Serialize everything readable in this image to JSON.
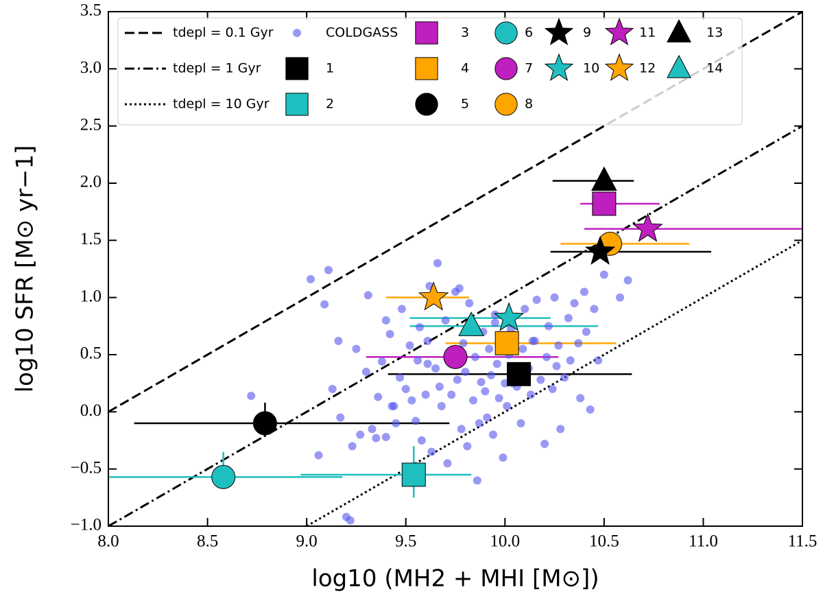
{
  "chart_data": {
    "type": "scatter",
    "xlabel": "log10 (MH2 + MHI [M⊙])",
    "ylabel": "log10 SFR [M⊙ yr−1]",
    "xlim": [
      8.0,
      11.5
    ],
    "ylim": [
      -1.0,
      3.5
    ],
    "xticks": [
      {
        "value": 8,
        "label": "8.0"
      },
      {
        "value": 8.5,
        "label": "8.5"
      },
      {
        "value": 9,
        "label": "9.0"
      },
      {
        "value": 9.5,
        "label": "9.5"
      },
      {
        "value": 10,
        "label": "10.0"
      },
      {
        "value": 10.5,
        "label": "10.5"
      },
      {
        "value": 11,
        "label": "11.0"
      },
      {
        "value": 11.5,
        "label": "11.5"
      }
    ],
    "yticks": [
      {
        "value": -1,
        "label": "−1.0"
      },
      {
        "value": -0.5,
        "label": "−0.5"
      },
      {
        "value": 0,
        "label": "0.0"
      },
      {
        "value": 0.5,
        "label": "0.5"
      },
      {
        "value": 1,
        "label": "1.0"
      },
      {
        "value": 1.5,
        "label": "1.5"
      },
      {
        "value": 2,
        "label": "2.0"
      },
      {
        "value": 2.5,
        "label": "2.5"
      },
      {
        "value": 3,
        "label": "3.0"
      },
      {
        "value": 3.5,
        "label": "3.5"
      }
    ],
    "legend": "upper left",
    "lines": [
      {
        "name": "tdepl = 0.1 Gyr",
        "style": "dashed",
        "color": "#000000",
        "x": [
          8.0,
          11.5
        ],
        "y": [
          0.0,
          3.5
        ]
      },
      {
        "name": "tdepl = 1 Gyr",
        "style": "dashdot",
        "color": "#000000",
        "x": [
          8.0,
          11.5
        ],
        "y": [
          -1.0,
          2.5
        ]
      },
      {
        "name": "tdepl = 10 Gyr",
        "style": "dotted",
        "color": "#000000",
        "x": [
          9.0,
          11.5
        ],
        "y": [
          -1.0,
          1.5
        ]
      }
    ],
    "series": [
      {
        "name": "COLDGASS",
        "color": "#5555ee",
        "marker": "dot",
        "x": [
          8.72,
          9.02,
          9.06,
          9.09,
          9.11,
          9.13,
          9.16,
          9.2,
          9.22,
          9.17,
          9.25,
          9.27,
          9.3,
          9.31,
          9.33,
          9.35,
          9.36,
          9.38,
          9.4,
          9.4,
          9.42,
          9.43,
          9.45,
          9.47,
          9.48,
          9.5,
          9.5,
          9.52,
          9.53,
          9.55,
          9.56,
          9.57,
          9.58,
          9.6,
          9.61,
          9.62,
          9.63,
          9.65,
          9.66,
          9.67,
          9.68,
          9.7,
          9.71,
          9.72,
          9.73,
          9.75,
          9.76,
          9.78,
          9.79,
          9.8,
          9.81,
          9.82,
          9.84,
          9.85,
          9.86,
          9.88,
          9.89,
          9.9,
          9.91,
          9.92,
          9.93,
          9.94,
          9.95,
          9.96,
          9.97,
          9.98,
          9.99,
          10.0,
          10.01,
          10.02,
          10.03,
          10.05,
          10.06,
          10.08,
          10.09,
          10.1,
          10.12,
          10.13,
          10.15,
          10.16,
          10.18,
          10.2,
          10.21,
          10.22,
          10.24,
          10.25,
          10.27,
          10.28,
          10.3,
          10.32,
          10.33,
          10.35,
          10.37,
          10.38,
          10.4,
          10.41,
          10.43,
          10.45,
          10.47,
          10.5,
          10.55,
          10.58,
          10.62,
          9.23,
          9.44,
          9.61,
          9.77,
          9.87,
          9.95,
          10.04,
          10.14,
          10.26
        ],
        "y": [
          0.14,
          1.16,
          -0.38,
          0.94,
          1.24,
          0.2,
          0.62,
          -0.92,
          -0.95,
          -0.05,
          0.55,
          -0.2,
          0.35,
          1.02,
          -0.15,
          -0.23,
          0.13,
          0.44,
          0.8,
          -0.22,
          0.68,
          0.05,
          -0.1,
          0.3,
          0.9,
          0.2,
          -0.5,
          0.58,
          0.1,
          -0.08,
          0.45,
          0.74,
          -0.25,
          0.15,
          0.62,
          1.1,
          -0.35,
          0.38,
          1.3,
          0.22,
          0.05,
          0.8,
          -0.45,
          0.5,
          0.15,
          1.05,
          0.28,
          -0.15,
          0.6,
          0.35,
          -0.3,
          0.95,
          0.1,
          0.48,
          -0.6,
          0.26,
          0.7,
          0.18,
          -0.05,
          0.55,
          0.32,
          -0.2,
          0.85,
          0.42,
          0.12,
          0.62,
          -0.4,
          0.25,
          0.05,
          0.5,
          0.72,
          0.3,
          0.22,
          -0.1,
          0.55,
          0.9,
          0.38,
          0.15,
          0.62,
          0.98,
          0.28,
          -0.28,
          0.48,
          0.75,
          0.2,
          1.0,
          0.58,
          -0.15,
          0.3,
          0.82,
          0.45,
          0.95,
          0.6,
          0.12,
          1.05,
          0.7,
          0.02,
          0.9,
          0.45,
          1.2,
          1.45,
          1.0,
          1.15,
          -0.3,
          0.05,
          0.42,
          1.08,
          -0.1,
          0.78,
          0.25,
          0.62,
          0.4
        ]
      },
      {
        "name": "1",
        "color": "#000000",
        "marker": "square",
        "x": [
          10.07
        ],
        "y": [
          0.33
        ],
        "xerr": [
          0.66,
          0.57
        ]
      },
      {
        "name": "2",
        "color": "#1fbfbf",
        "marker": "square",
        "x": [
          9.54
        ],
        "y": [
          -0.55
        ],
        "xerr": [
          0.57,
          0.29
        ],
        "yerr": [
          0.2,
          0.25
        ]
      },
      {
        "name": "3",
        "color": "#bf1fbf",
        "marker": "square",
        "x": [
          10.5
        ],
        "y": [
          1.82
        ],
        "xerr": [
          0.12,
          0.28
        ]
      },
      {
        "name": "4",
        "color": "#ffa500",
        "marker": "square",
        "x": [
          10.01
        ],
        "y": [
          0.6
        ],
        "xerr": [
          0.31,
          0.55
        ]
      },
      {
        "name": "5",
        "color": "#000000",
        "marker": "circle",
        "x": [
          8.79
        ],
        "y": [
          -0.1
        ],
        "xerr": [
          0.66,
          0.93
        ],
        "yerr": [
          0,
          0.18
        ]
      },
      {
        "name": "6",
        "color": "#1fbfbf",
        "marker": "circle",
        "x": [
          8.58
        ],
        "y": [
          -0.57
        ],
        "xerr": [
          0.62,
          0.6
        ],
        "yerr": [
          0,
          0.22
        ]
      },
      {
        "name": "7",
        "color": "#bf1fbf",
        "marker": "circle",
        "x": [
          9.75
        ],
        "y": [
          0.48
        ],
        "xerr": [
          0.45,
          0.52
        ]
      },
      {
        "name": "8",
        "color": "#ffa500",
        "marker": "circle",
        "x": [
          10.53
        ],
        "y": [
          1.47
        ],
        "xerr": [
          0.25,
          0.4
        ]
      },
      {
        "name": "9",
        "color": "#000000",
        "marker": "star",
        "x": [
          10.48
        ],
        "y": [
          1.4
        ],
        "xerr": [
          0.25,
          0.56
        ]
      },
      {
        "name": "10",
        "color": "#1fbfbf",
        "marker": "star",
        "x": [
          10.02
        ],
        "y": [
          0.82
        ],
        "xerr": [
          0.5,
          0.21
        ]
      },
      {
        "name": "11",
        "color": "#bf1fbf",
        "marker": "star",
        "x": [
          10.72
        ],
        "y": [
          1.6
        ],
        "xerr": [
          0.32,
          0.85
        ]
      },
      {
        "name": "12",
        "color": "#ffa500",
        "marker": "star",
        "x": [
          9.64
        ],
        "y": [
          1.0
        ],
        "xerr": [
          0.24,
          0.18
        ]
      },
      {
        "name": "13",
        "color": "#000000",
        "marker": "triangle",
        "x": [
          10.5
        ],
        "y": [
          2.02
        ],
        "xerr": [
          0.26,
          0.15
        ]
      },
      {
        "name": "14",
        "color": "#1fbfbf",
        "marker": "triangle",
        "x": [
          9.83
        ],
        "y": [
          0.75
        ],
        "xerr": [
          0.31,
          0.64
        ]
      }
    ]
  }
}
